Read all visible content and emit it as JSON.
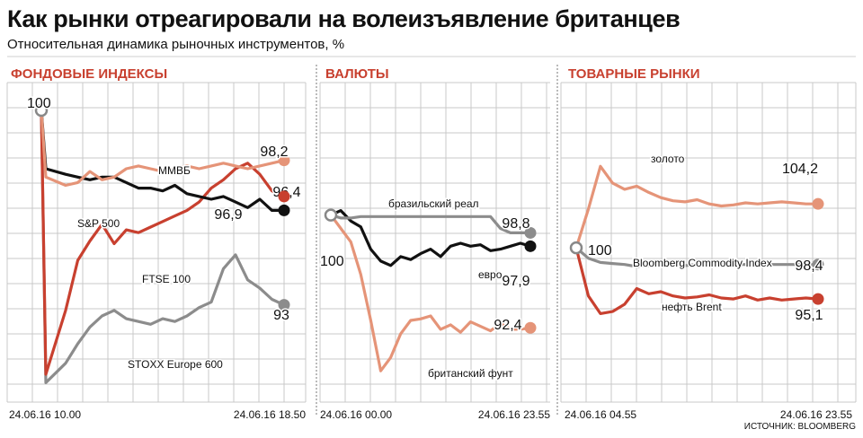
{
  "header": {
    "title": "Как рынки отреагировали на волеизъявление британцев",
    "subtitle": "Относительная динамика рыночных инструментов, %"
  },
  "footer": {
    "source": "ИСТОЧНИК: BLOOMBERG"
  },
  "colors": {
    "red": "#c8402f",
    "salmon": "#e59478",
    "gray": "#8c8c8c",
    "black": "#111111",
    "grid": "#c9c9c9"
  },
  "chart_data": [
    {
      "type": "line",
      "title": "ФОНДОВЫЕ ИНДЕКСЫ",
      "x_labels": [
        "24.06.16 10.00",
        "24.06.16 18.50"
      ],
      "ylim": [
        89.5,
        101
      ],
      "start_label": "100",
      "series": [
        {
          "name": "ММВБ",
          "color": "salmon",
          "end_label": "98,2",
          "values": [
            100,
            97.6,
            97.3,
            97.4,
            97.8,
            97.5,
            97.6,
            97.9,
            98.0,
            97.9,
            97.8,
            97.9,
            98.0,
            97.9,
            98.0,
            98.1,
            98.0,
            97.9,
            98.0,
            98.1,
            98.2
          ]
        },
        {
          "name": "S&P 500",
          "color": "black",
          "end_label": "96,4",
          "values": [
            100,
            97.9,
            97.7,
            97.6,
            97.5,
            97.6,
            97.6,
            97.4,
            97.2,
            97.2,
            97.1,
            97.3,
            97.0,
            96.9,
            96.8,
            96.9,
            96.7,
            96.5,
            96.8,
            96.4,
            96.4
          ]
        },
        {
          "name": "FTSE 100",
          "color": "red",
          "end_label": "96,9",
          "values": [
            100,
            90.5,
            92.8,
            94.6,
            95.3,
            95.9,
            95.2,
            95.7,
            95.6,
            95.8,
            96.0,
            96.2,
            96.4,
            96.7,
            97.2,
            97.5,
            97.9,
            98.1,
            97.7,
            97.1,
            96.9
          ]
        },
        {
          "name": "STOXX Europe 600",
          "color": "gray",
          "end_label": "93",
          "values": [
            100,
            90.2,
            90.9,
            91.6,
            92.2,
            92.6,
            92.8,
            92.5,
            92.4,
            92.3,
            92.5,
            92.4,
            92.6,
            92.9,
            93.1,
            94.3,
            94.8,
            93.9,
            93.6,
            93.2,
            93.0
          ]
        }
      ]
    },
    {
      "type": "line",
      "title": "ВАЛЮТЫ",
      "x_labels": [
        "24.06.16 00.00",
        "24.06.16 23.55"
      ],
      "ylim": [
        88,
        103
      ],
      "start_label": "100",
      "series": [
        {
          "name": "бразильский реал",
          "color": "gray",
          "end_label": "98,8",
          "values": [
            100,
            99.8,
            99.8,
            99.9,
            99.9,
            99.9,
            99.9,
            99.9,
            99.9,
            99.9,
            99.9,
            99.9,
            99.9,
            99.9,
            99.9,
            99.9,
            99.9,
            99.1,
            98.8,
            98.8,
            98.8
          ]
        },
        {
          "name": "евро",
          "color": "black",
          "end_label": "97,9",
          "values": [
            100,
            100.3,
            99.6,
            99.2,
            97.7,
            96.9,
            96.6,
            97.2,
            97.0,
            97.4,
            97.7,
            97.2,
            97.9,
            98.1,
            97.9,
            98.0,
            97.6,
            97.7,
            97.9,
            98.1,
            97.9
          ]
        },
        {
          "name": "британский фунт",
          "color": "salmon",
          "end_label": "92,4",
          "values": [
            100,
            99.1,
            98.2,
            96.0,
            92.9,
            89.5,
            90.4,
            92.0,
            92.9,
            93.0,
            93.2,
            92.3,
            92.6,
            92.1,
            92.8,
            92.5,
            92.2,
            92.7,
            92.3,
            92.3,
            92.4
          ]
        }
      ]
    },
    {
      "type": "line",
      "title": "ТОВАРНЫЕ РЫНКИ",
      "x_labels": [
        "24.06.16 04.55",
        "24.06.16 23.55"
      ],
      "ylim": [
        88.5,
        111
      ],
      "start_label": "100",
      "series": [
        {
          "name": "золото",
          "color": "salmon",
          "end_label": "104,2",
          "values": [
            100,
            103.7,
            107.8,
            106.2,
            105.6,
            105.9,
            105.3,
            104.8,
            104.5,
            104.4,
            104.6,
            104.2,
            104.0,
            104.1,
            104.3,
            104.2,
            104.3,
            104.4,
            104.3,
            104.2,
            104.2
          ]
        },
        {
          "name": "Bloomberg Commodity Index",
          "color": "gray",
          "end_label": "98,4",
          "values": [
            100,
            99.0,
            98.6,
            98.5,
            98.4,
            98.2,
            98.3,
            98.4,
            98.4,
            98.3,
            98.4,
            98.5,
            98.4,
            98.4,
            98.4,
            98.5,
            98.4,
            98.4,
            98.4,
            98.4,
            98.4
          ]
        },
        {
          "name": "нефть Brent",
          "color": "red",
          "end_label": "95,1",
          "values": [
            100,
            95.4,
            93.7,
            93.9,
            94.6,
            96.1,
            95.6,
            95.8,
            95.4,
            95.2,
            95.3,
            95.5,
            95.2,
            95.1,
            95.4,
            95.0,
            95.2,
            95.0,
            95.1,
            95.2,
            95.1
          ]
        }
      ]
    }
  ]
}
